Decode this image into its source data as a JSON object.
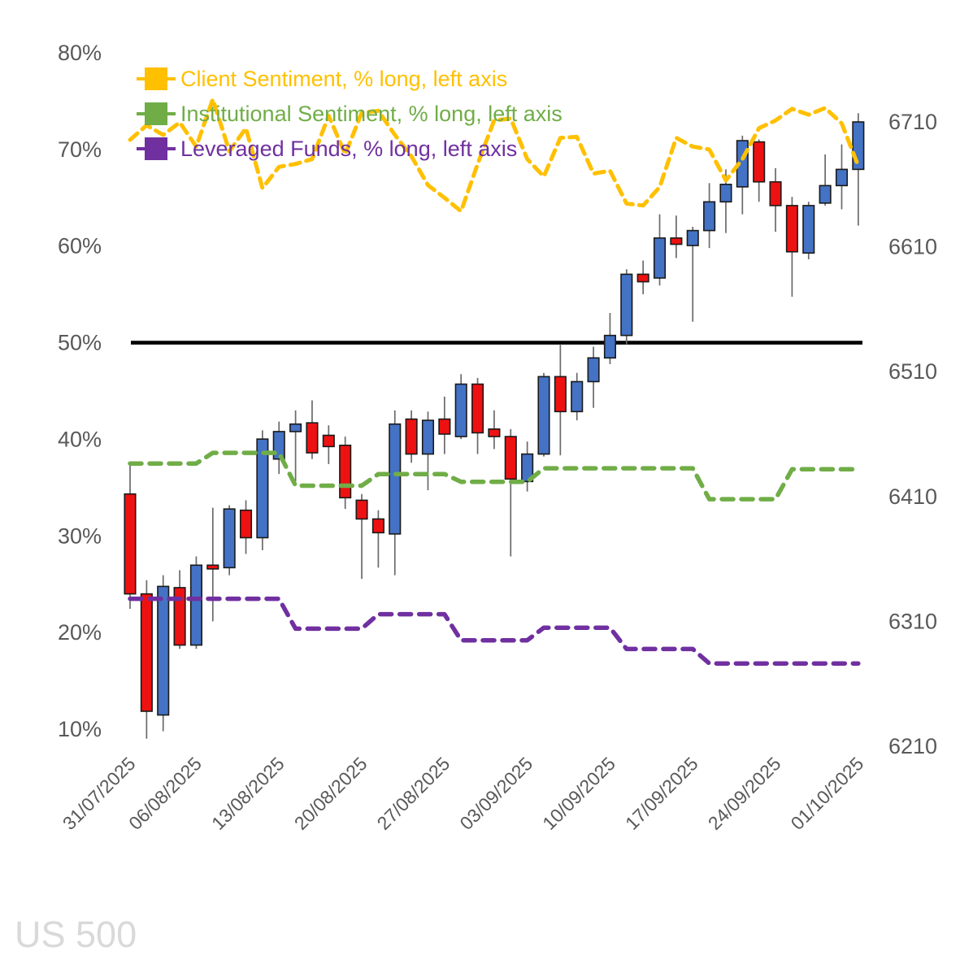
{
  "title": "US 500",
  "legend": {
    "items": [
      {
        "label": "Client Sentiment, % long, left axis",
        "color": "#FFC000"
      },
      {
        "label": "Institutional Sentiment, % long, left axis",
        "color": "#70AD47"
      },
      {
        "label": "Leveraged Funds, % long, left axis",
        "color": "#7030A0"
      }
    ]
  },
  "chart_data": {
    "type": "candlestick",
    "title": "US 500",
    "grid": false,
    "legend_position": "top-left",
    "left_axis": {
      "unit": "%",
      "ticks": [
        80,
        70,
        60,
        50,
        40,
        30,
        20,
        10
      ],
      "range": [
        10,
        80
      ]
    },
    "right_axis": {
      "ticks": [
        6710,
        6610,
        6510,
        6410,
        6310,
        6210
      ],
      "range": [
        6210,
        6710
      ]
    },
    "reference_line": {
      "value_pct": 50,
      "color": "#000000"
    },
    "x_tick_labels": {
      "labels": [
        "31/07/2025",
        "06/08/2025",
        "13/08/2025",
        "20/08/2025",
        "27/08/2025",
        "03/09/2025",
        "10/09/2025",
        "17/09/2025",
        "24/09/2025",
        "01/10/2025"
      ],
      "indices": [
        0,
        4,
        9,
        14,
        19,
        24,
        29,
        34,
        39,
        44
      ]
    },
    "dates": [
      "31/07/2025",
      "01/08/2025",
      "04/08/2025",
      "05/08/2025",
      "06/08/2025",
      "07/08/2025",
      "08/08/2025",
      "11/08/2025",
      "12/08/2025",
      "13/08/2025",
      "14/08/2025",
      "15/08/2025",
      "18/08/2025",
      "19/08/2025",
      "20/08/2025",
      "21/08/2025",
      "22/08/2025",
      "25/08/2025",
      "26/08/2025",
      "27/08/2025",
      "28/08/2025",
      "29/08/2025",
      "01/09/2025",
      "02/09/2025",
      "03/09/2025",
      "04/09/2025",
      "05/09/2025",
      "08/09/2025",
      "09/09/2025",
      "10/09/2025",
      "11/09/2025",
      "12/09/2025",
      "15/09/2025",
      "16/09/2025",
      "17/09/2025",
      "18/09/2025",
      "19/09/2025",
      "22/09/2025",
      "23/09/2025",
      "24/09/2025",
      "25/09/2025",
      "26/09/2025",
      "29/09/2025",
      "30/09/2025",
      "01/10/2025"
    ],
    "candles_ohlc": [
      [
        6412,
        6436,
        6320,
        6332
      ],
      [
        6332,
        6343,
        6216,
        6238
      ],
      [
        6235,
        6347,
        6222,
        6338
      ],
      [
        6337,
        6351,
        6288,
        6291
      ],
      [
        6291,
        6362,
        6288,
        6355
      ],
      [
        6355,
        6401,
        6310,
        6352
      ],
      [
        6353,
        6403,
        6347,
        6400
      ],
      [
        6399,
        6407,
        6364,
        6377
      ],
      [
        6377,
        6463,
        6367,
        6456
      ],
      [
        6440,
        6470,
        6428,
        6462
      ],
      [
        6462,
        6479,
        6422,
        6468
      ],
      [
        6469,
        6487,
        6440,
        6445
      ],
      [
        6459,
        6467,
        6436,
        6450
      ],
      [
        6451,
        6458,
        6400,
        6409
      ],
      [
        6407,
        6412,
        6344,
        6392
      ],
      [
        6392,
        6399,
        6353,
        6381
      ],
      [
        6380,
        6479,
        6347,
        6468
      ],
      [
        6472,
        6479,
        6437,
        6444
      ],
      [
        6444,
        6478,
        6415,
        6471
      ],
      [
        6472,
        6490,
        6444,
        6460
      ],
      [
        6458,
        6508,
        6456,
        6500
      ],
      [
        6500,
        6505,
        6444,
        6461
      ],
      [
        6464,
        6479,
        6448,
        6458
      ],
      [
        6458,
        6464,
        6362,
        6424
      ],
      [
        6422,
        6454,
        6414,
        6444
      ],
      [
        6444,
        6509,
        6442,
        6506
      ],
      [
        6506,
        6532,
        6443,
        6478
      ],
      [
        6478,
        6509,
        6471,
        6502
      ],
      [
        6502,
        6530,
        6481,
        6521
      ],
      [
        6521,
        6557,
        6516,
        6539
      ],
      [
        6539,
        6592,
        6532,
        6588
      ],
      [
        6588,
        6599,
        6572,
        6582
      ],
      [
        6585,
        6636,
        6579,
        6617
      ],
      [
        6617,
        6635,
        6601,
        6612
      ],
      [
        6611,
        6626,
        6550,
        6623
      ],
      [
        6623,
        6661,
        6609,
        6646
      ],
      [
        6646,
        6672,
        6621,
        6660
      ],
      [
        6658,
        6699,
        6636,
        6695
      ],
      [
        6694,
        6696,
        6646,
        6662
      ],
      [
        6662,
        6673,
        6622,
        6643
      ],
      [
        6643,
        6650,
        6570,
        6606
      ],
      [
        6605,
        6646,
        6600,
        6643
      ],
      [
        6645,
        6684,
        6643,
        6659
      ],
      [
        6659,
        6692,
        6640,
        6672
      ],
      [
        6672,
        6717,
        6627,
        6710
      ]
    ],
    "candle_up_color": "#4472C4",
    "candle_down_color": "#EE1111",
    "series": [
      {
        "name": "Client Sentiment, % long, left axis",
        "color": "#FFC000",
        "style": "dashed",
        "values": [
          71.0,
          72.5,
          71.5,
          72.8,
          70.3,
          75.2,
          69.8,
          72.2,
          66.0,
          68.2,
          68.5,
          69.0,
          73.5,
          69.5,
          73.8,
          74.0,
          71.5,
          69.3,
          66.3,
          65.0,
          63.6,
          68.5,
          73.0,
          73.2,
          69.0,
          67.2,
          71.2,
          71.3,
          67.5,
          67.8,
          64.4,
          64.2,
          66.1,
          71.2,
          70.3,
          70.0,
          66.8,
          69.0,
          72.2,
          73.0,
          74.2,
          73.6,
          74.3,
          72.7,
          68.3
        ]
      },
      {
        "name": "Institutional Sentiment, % long, left axis",
        "color": "#70AD47",
        "style": "dashed",
        "values": [
          37.5,
          37.5,
          37.5,
          37.5,
          37.5,
          38.6,
          38.6,
          38.6,
          38.6,
          38.6,
          35.2,
          35.2,
          35.2,
          35.2,
          35.2,
          36.4,
          36.4,
          36.4,
          36.4,
          36.4,
          35.6,
          35.6,
          35.6,
          35.6,
          35.6,
          37.0,
          37.0,
          37.0,
          37.0,
          37.0,
          37.0,
          37.0,
          37.0,
          37.0,
          37.0,
          33.8,
          33.8,
          33.8,
          33.8,
          33.8,
          36.9,
          36.9,
          36.9,
          36.9,
          36.9
        ]
      },
      {
        "name": "Leveraged Funds, % long, left axis",
        "color": "#7030A0",
        "style": "dashed",
        "values": [
          23.5,
          23.5,
          23.5,
          23.5,
          23.5,
          23.5,
          23.5,
          23.5,
          23.5,
          23.5,
          20.4,
          20.4,
          20.4,
          20.4,
          20.4,
          21.9,
          21.9,
          21.9,
          21.9,
          21.9,
          19.2,
          19.2,
          19.2,
          19.2,
          19.2,
          20.5,
          20.5,
          20.5,
          20.5,
          20.5,
          18.3,
          18.3,
          18.3,
          18.3,
          18.3,
          16.8,
          16.8,
          16.8,
          16.8,
          16.8,
          16.8,
          16.8,
          16.8,
          16.8,
          16.8
        ]
      }
    ]
  }
}
